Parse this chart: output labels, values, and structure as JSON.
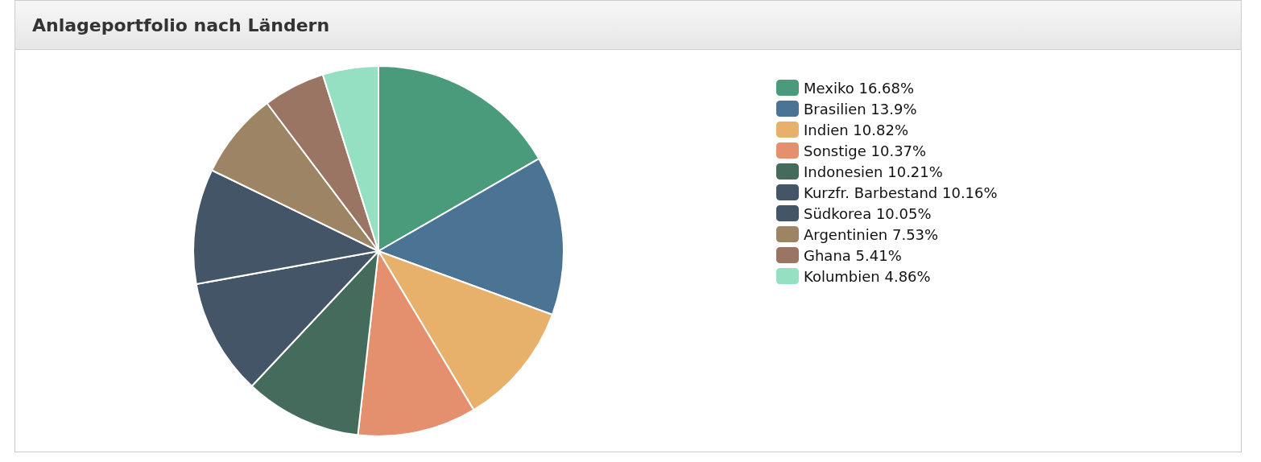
{
  "chart_data": {
    "type": "pie",
    "title": "Anlageportfolio nach Ländern",
    "categories": [
      "Mexiko",
      "Brasilien",
      "Indien",
      "Sonstige",
      "Indonesien",
      "Kurzfr. Barbestand",
      "Südkorea",
      "Argentinien",
      "Ghana",
      "Kolumbien"
    ],
    "values": [
      16.68,
      13.9,
      10.82,
      10.37,
      10.21,
      10.16,
      10.05,
      7.53,
      5.41,
      4.86
    ],
    "value_labels": [
      "16.68%",
      "13.9%",
      "10.82%",
      "10.37%",
      "10.21%",
      "10.16%",
      "10.05%",
      "7.53%",
      "5.41%",
      "4.86%"
    ],
    "colors": [
      "#4a9b7b",
      "#4a7394",
      "#e8b16b",
      "#e48f6d",
      "#446b5b",
      "#435566",
      "#435566",
      "#9c8464",
      "#9b7563",
      "#95dfc3"
    ],
    "legend": "right"
  }
}
